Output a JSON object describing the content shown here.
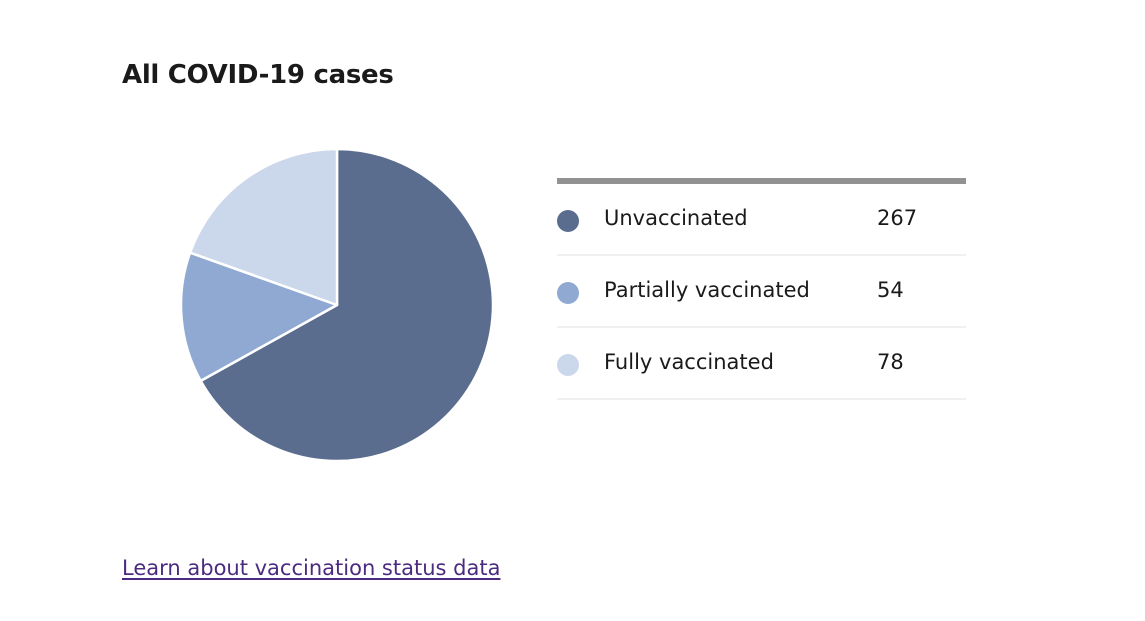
{
  "title": "All COVID-19 cases",
  "link": {
    "label": "Learn about vaccination status data"
  },
  "colors": {
    "unvaccinated": "#5b6d8e",
    "partially": "#8fa9d2",
    "fully": "#cbd7ea",
    "slice_border": "#ffffff",
    "link": "#4b2b7f"
  },
  "chart_data": {
    "type": "pie",
    "title": "All COVID-19 cases",
    "legend_position": "right",
    "slices": [
      {
        "label": "Unvaccinated",
        "value": 267,
        "color": "#5b6d8e"
      },
      {
        "label": "Partially vaccinated",
        "value": 54,
        "color": "#8fa9d2"
      },
      {
        "label": "Fully vaccinated",
        "value": 78,
        "color": "#cbd7ea"
      }
    ]
  }
}
